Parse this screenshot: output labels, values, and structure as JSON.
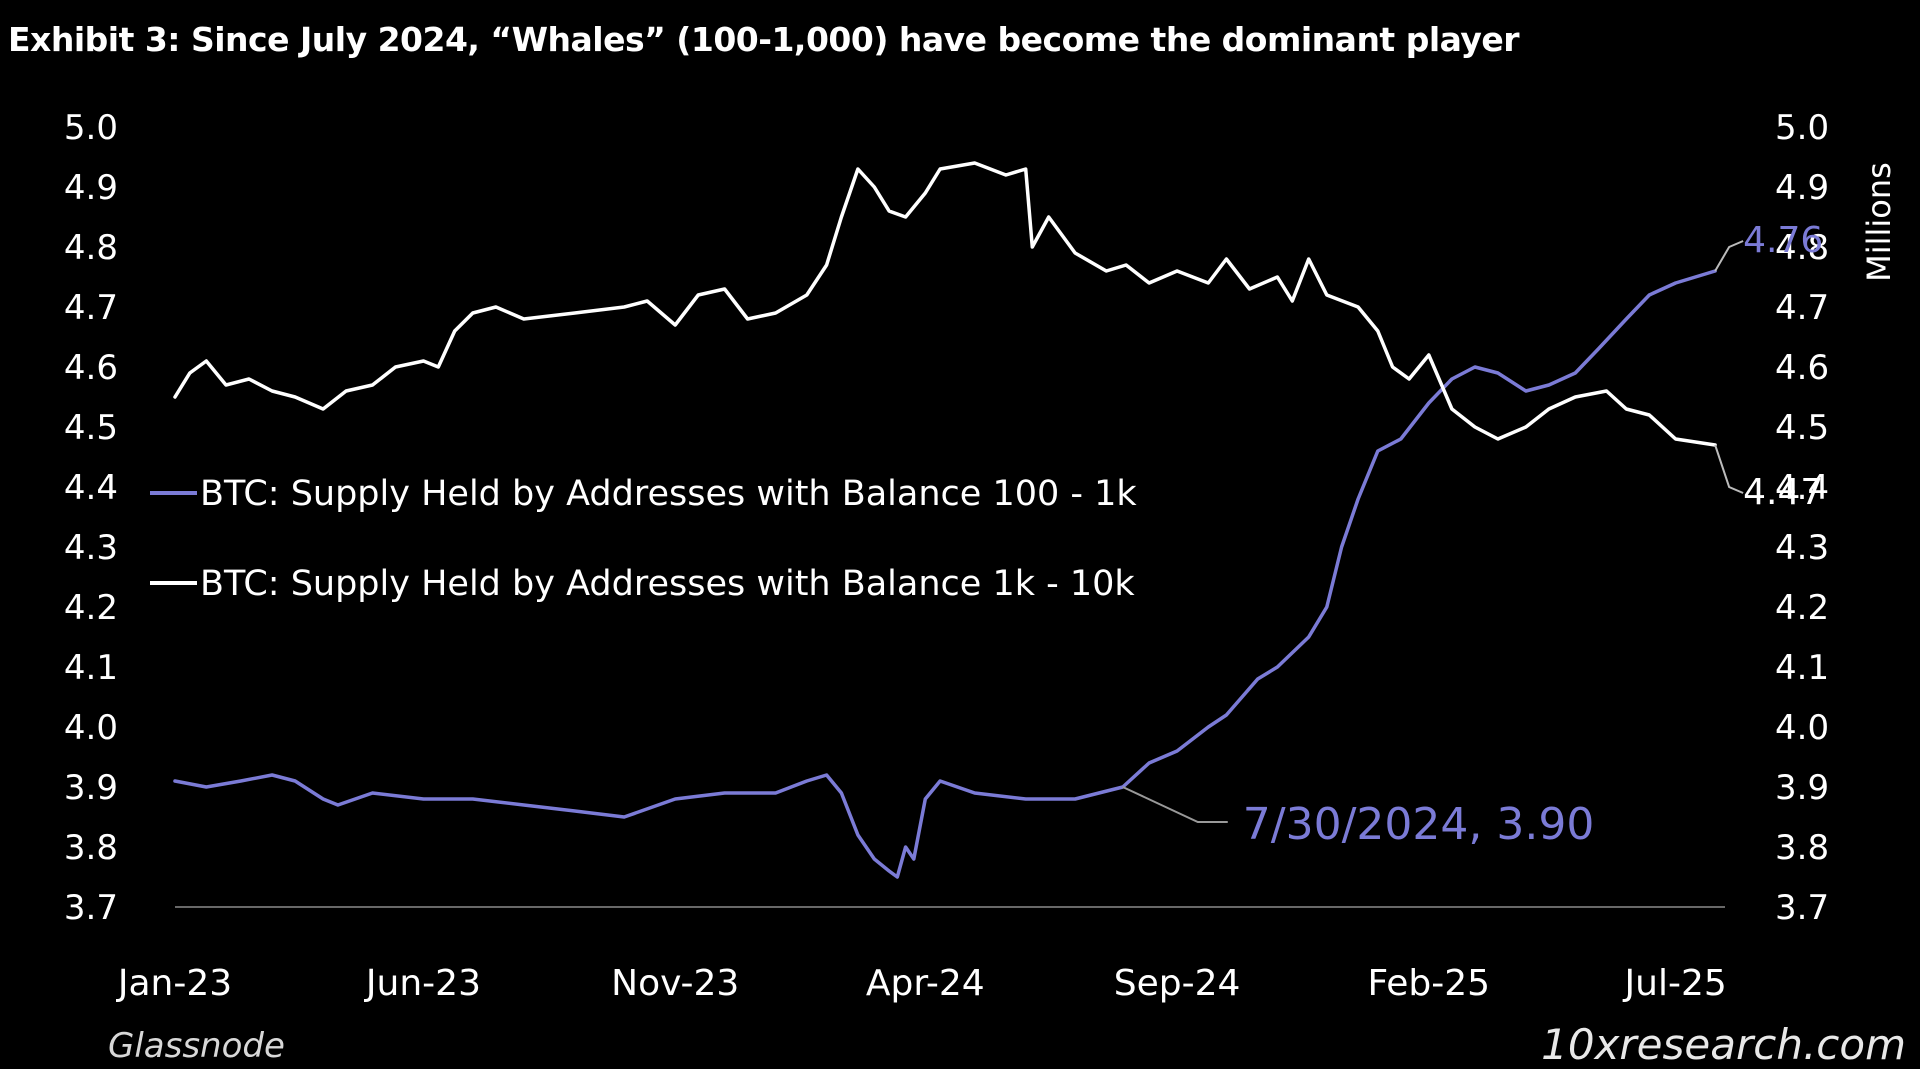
{
  "header": {
    "title": "Exhibit 3: Since July 2024, “Whales” (100-1,000) have become the dominant player"
  },
  "footer": {
    "source_left": "Glassnode",
    "source_right": "10xresearch.com"
  },
  "colors": {
    "background": "#000000",
    "series_100_1k": "#7b7bd6",
    "series_1k_10k": "#ffffff",
    "axis": "#8a8a8a"
  },
  "chart_data": {
    "type": "line",
    "title": "Exhibit 3: Since July 2024, “Whales” (100-1,000) have become the dominant player",
    "ylabel_right": "Millions",
    "ylim": [
      3.7,
      5.0
    ],
    "yticks": [
      "5.0",
      "4.9",
      "4.8",
      "4.7",
      "4.6",
      "4.5",
      "4.4",
      "4.3",
      "4.2",
      "4.1",
      "4.0",
      "3.9",
      "3.8",
      "3.7"
    ],
    "xlim": [
      "2023-01-01",
      "2025-07-31"
    ],
    "xticks": [
      {
        "date": "2023-01-01",
        "label": "Jan-23"
      },
      {
        "date": "2023-06-01",
        "label": "Jun-23"
      },
      {
        "date": "2023-11-01",
        "label": "Nov-23"
      },
      {
        "date": "2024-04-01",
        "label": "Apr-24"
      },
      {
        "date": "2024-09-01",
        "label": "Sep-24"
      },
      {
        "date": "2025-02-01",
        "label": "Feb-25"
      },
      {
        "date": "2025-07-01",
        "label": "Jul-25"
      }
    ],
    "legend_position": "center-left",
    "grid": false,
    "series": [
      {
        "name": "BTC: Supply Held by Addresses with Balance 100 - 1k",
        "color": "#7b7bd6",
        "points": [
          [
            "2023-01-01",
            3.91
          ],
          [
            "2023-01-20",
            3.9
          ],
          [
            "2023-02-10",
            3.91
          ],
          [
            "2023-03-01",
            3.92
          ],
          [
            "2023-03-15",
            3.91
          ],
          [
            "2023-04-01",
            3.88
          ],
          [
            "2023-04-10",
            3.87
          ],
          [
            "2023-05-01",
            3.89
          ],
          [
            "2023-06-01",
            3.88
          ],
          [
            "2023-07-01",
            3.88
          ],
          [
            "2023-08-01",
            3.87
          ],
          [
            "2023-09-01",
            3.86
          ],
          [
            "2023-10-01",
            3.85
          ],
          [
            "2023-11-01",
            3.88
          ],
          [
            "2023-12-01",
            3.89
          ],
          [
            "2024-01-01",
            3.89
          ],
          [
            "2024-01-20",
            3.91
          ],
          [
            "2024-02-01",
            3.92
          ],
          [
            "2024-02-10",
            3.89
          ],
          [
            "2024-02-20",
            3.82
          ],
          [
            "2024-03-01",
            3.78
          ],
          [
            "2024-03-10",
            3.76
          ],
          [
            "2024-03-15",
            3.75
          ],
          [
            "2024-03-20",
            3.8
          ],
          [
            "2024-03-25",
            3.78
          ],
          [
            "2024-04-01",
            3.88
          ],
          [
            "2024-04-10",
            3.91
          ],
          [
            "2024-05-01",
            3.89
          ],
          [
            "2024-06-01",
            3.88
          ],
          [
            "2024-07-01",
            3.88
          ],
          [
            "2024-07-30",
            3.9
          ],
          [
            "2024-08-15",
            3.94
          ],
          [
            "2024-09-01",
            3.96
          ],
          [
            "2024-09-20",
            4.0
          ],
          [
            "2024-10-01",
            4.02
          ],
          [
            "2024-10-20",
            4.08
          ],
          [
            "2024-11-01",
            4.1
          ],
          [
            "2024-11-20",
            4.15
          ],
          [
            "2024-12-01",
            4.2
          ],
          [
            "2024-12-10",
            4.3
          ],
          [
            "2024-12-20",
            4.38
          ],
          [
            "2025-01-01",
            4.46
          ],
          [
            "2025-01-15",
            4.48
          ],
          [
            "2025-02-01",
            4.54
          ],
          [
            "2025-02-15",
            4.58
          ],
          [
            "2025-03-01",
            4.6
          ],
          [
            "2025-03-15",
            4.59
          ],
          [
            "2025-04-01",
            4.56
          ],
          [
            "2025-04-15",
            4.57
          ],
          [
            "2025-05-01",
            4.59
          ],
          [
            "2025-05-15",
            4.63
          ],
          [
            "2025-06-01",
            4.68
          ],
          [
            "2025-06-15",
            4.72
          ],
          [
            "2025-07-01",
            4.74
          ],
          [
            "2025-07-25",
            4.76
          ]
        ]
      },
      {
        "name": "BTC: Supply Held by Addresses with Balance 1k - 10k",
        "color": "#ffffff",
        "points": [
          [
            "2023-01-01",
            4.55
          ],
          [
            "2023-01-10",
            4.59
          ],
          [
            "2023-01-20",
            4.61
          ],
          [
            "2023-02-01",
            4.57
          ],
          [
            "2023-02-15",
            4.58
          ],
          [
            "2023-03-01",
            4.56
          ],
          [
            "2023-03-15",
            4.55
          ],
          [
            "2023-04-01",
            4.53
          ],
          [
            "2023-04-15",
            4.56
          ],
          [
            "2023-05-01",
            4.57
          ],
          [
            "2023-05-15",
            4.6
          ],
          [
            "2023-06-01",
            4.61
          ],
          [
            "2023-06-10",
            4.6
          ],
          [
            "2023-06-20",
            4.66
          ],
          [
            "2023-07-01",
            4.69
          ],
          [
            "2023-07-15",
            4.7
          ],
          [
            "2023-08-01",
            4.68
          ],
          [
            "2023-09-01",
            4.69
          ],
          [
            "2023-10-01",
            4.7
          ],
          [
            "2023-10-15",
            4.71
          ],
          [
            "2023-11-01",
            4.67
          ],
          [
            "2023-11-15",
            4.72
          ],
          [
            "2023-12-01",
            4.73
          ],
          [
            "2023-12-15",
            4.68
          ],
          [
            "2024-01-01",
            4.69
          ],
          [
            "2024-01-20",
            4.72
          ],
          [
            "2024-02-01",
            4.77
          ],
          [
            "2024-02-10",
            4.85
          ],
          [
            "2024-02-20",
            4.93
          ],
          [
            "2024-03-01",
            4.9
          ],
          [
            "2024-03-10",
            4.86
          ],
          [
            "2024-03-20",
            4.85
          ],
          [
            "2024-04-01",
            4.89
          ],
          [
            "2024-04-10",
            4.93
          ],
          [
            "2024-05-01",
            4.94
          ],
          [
            "2024-05-20",
            4.92
          ],
          [
            "2024-06-01",
            4.93
          ],
          [
            "2024-06-05",
            4.8
          ],
          [
            "2024-06-15",
            4.85
          ],
          [
            "2024-07-01",
            4.79
          ],
          [
            "2024-07-20",
            4.76
          ],
          [
            "2024-08-01",
            4.77
          ],
          [
            "2024-08-15",
            4.74
          ],
          [
            "2024-09-01",
            4.76
          ],
          [
            "2024-09-20",
            4.74
          ],
          [
            "2024-10-01",
            4.78
          ],
          [
            "2024-10-15",
            4.73
          ],
          [
            "2024-11-01",
            4.75
          ],
          [
            "2024-11-10",
            4.71
          ],
          [
            "2024-11-20",
            4.78
          ],
          [
            "2024-12-01",
            4.72
          ],
          [
            "2024-12-20",
            4.7
          ],
          [
            "2025-01-01",
            4.66
          ],
          [
            "2025-01-10",
            4.6
          ],
          [
            "2025-01-20",
            4.58
          ],
          [
            "2025-02-01",
            4.62
          ],
          [
            "2025-02-15",
            4.53
          ],
          [
            "2025-03-01",
            4.5
          ],
          [
            "2025-03-15",
            4.48
          ],
          [
            "2025-04-01",
            4.5
          ],
          [
            "2025-04-15",
            4.53
          ],
          [
            "2025-05-01",
            4.55
          ],
          [
            "2025-05-20",
            4.56
          ],
          [
            "2025-06-01",
            4.53
          ],
          [
            "2025-06-15",
            4.52
          ],
          [
            "2025-07-01",
            4.48
          ],
          [
            "2025-07-25",
            4.47
          ]
        ]
      }
    ],
    "annotations": [
      {
        "text": "4.76",
        "series": 0,
        "date": "2025-07-25",
        "value": 4.76,
        "color": "#7b7bd6"
      },
      {
        "text": "4.47",
        "series": 1,
        "date": "2025-07-25",
        "value": 4.47,
        "color": "#ffffff"
      },
      {
        "text": "7/30/2024, 3.90",
        "series": 0,
        "date": "2024-07-30",
        "value": 3.9,
        "color": "#7b7bd6"
      }
    ]
  }
}
